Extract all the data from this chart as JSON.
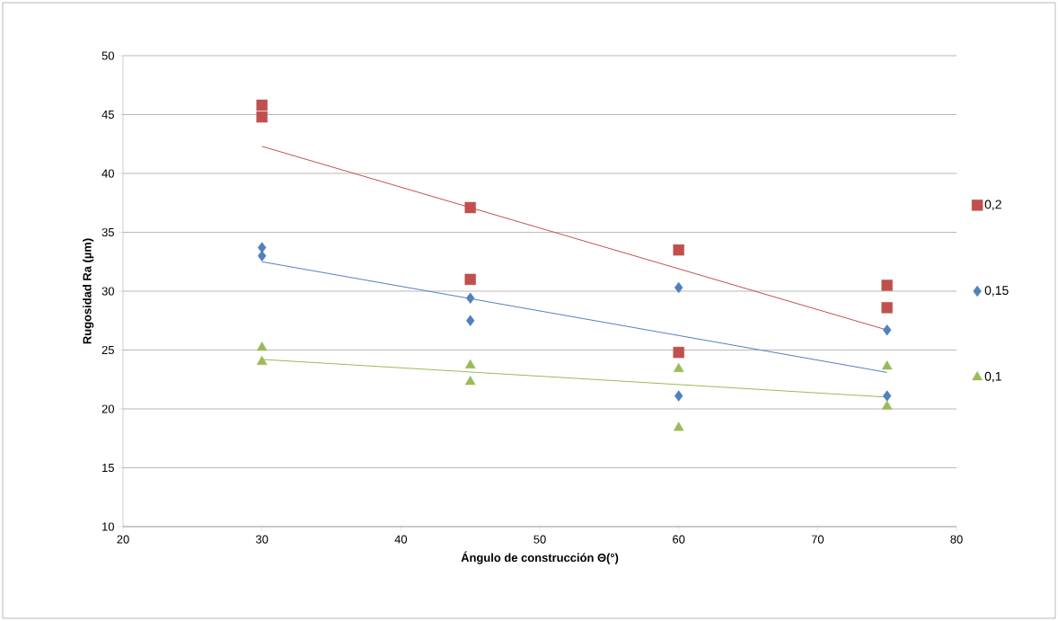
{
  "chart_data": {
    "type": "scatter",
    "xlabel": "Ángulo de construcción Θ(°)",
    "ylabel": "Rugosidad Ra (µm)",
    "xlim": [
      20,
      80
    ],
    "ylim": [
      10,
      50
    ],
    "xticks": [
      20,
      30,
      40,
      50,
      60,
      70,
      80
    ],
    "yticks": [
      10,
      15,
      20,
      25,
      30,
      35,
      40,
      45,
      50
    ],
    "grid": "y",
    "legend": "right",
    "series": [
      {
        "name": "0,2",
        "color": "#c0504d",
        "marker": "square",
        "x": [
          30,
          30,
          45,
          45,
          60,
          60,
          75,
          75
        ],
        "values": [
          45.8,
          44.8,
          37.1,
          31.0,
          33.5,
          24.8,
          30.5,
          28.6
        ]
      },
      {
        "name": "0,15",
        "color": "#4f81bd",
        "marker": "diamond",
        "x": [
          30,
          30,
          45,
          45,
          60,
          60,
          75,
          75
        ],
        "values": [
          33.7,
          33.0,
          29.4,
          27.5,
          30.3,
          21.1,
          26.7,
          21.1
        ]
      },
      {
        "name": "0,1",
        "color": "#9bbb59",
        "marker": "triangle",
        "x": [
          30,
          30,
          45,
          45,
          60,
          60,
          75,
          75
        ],
        "values": [
          25.2,
          24.0,
          23.7,
          22.3,
          23.4,
          18.4,
          23.6,
          20.2
        ]
      },
      {
        "type": "line",
        "color": "#c0504d",
        "marker": "none",
        "x": [
          30,
          75
        ],
        "values": [
          42.3,
          26.7
        ]
      },
      {
        "type": "line",
        "color": "#4f81bd",
        "marker": "none",
        "x": [
          30,
          75
        ],
        "values": [
          32.5,
          23.1
        ]
      },
      {
        "type": "line",
        "color": "#9bbb59",
        "marker": "none",
        "x": [
          30,
          75
        ],
        "values": [
          24.2,
          21.0
        ]
      }
    ]
  }
}
